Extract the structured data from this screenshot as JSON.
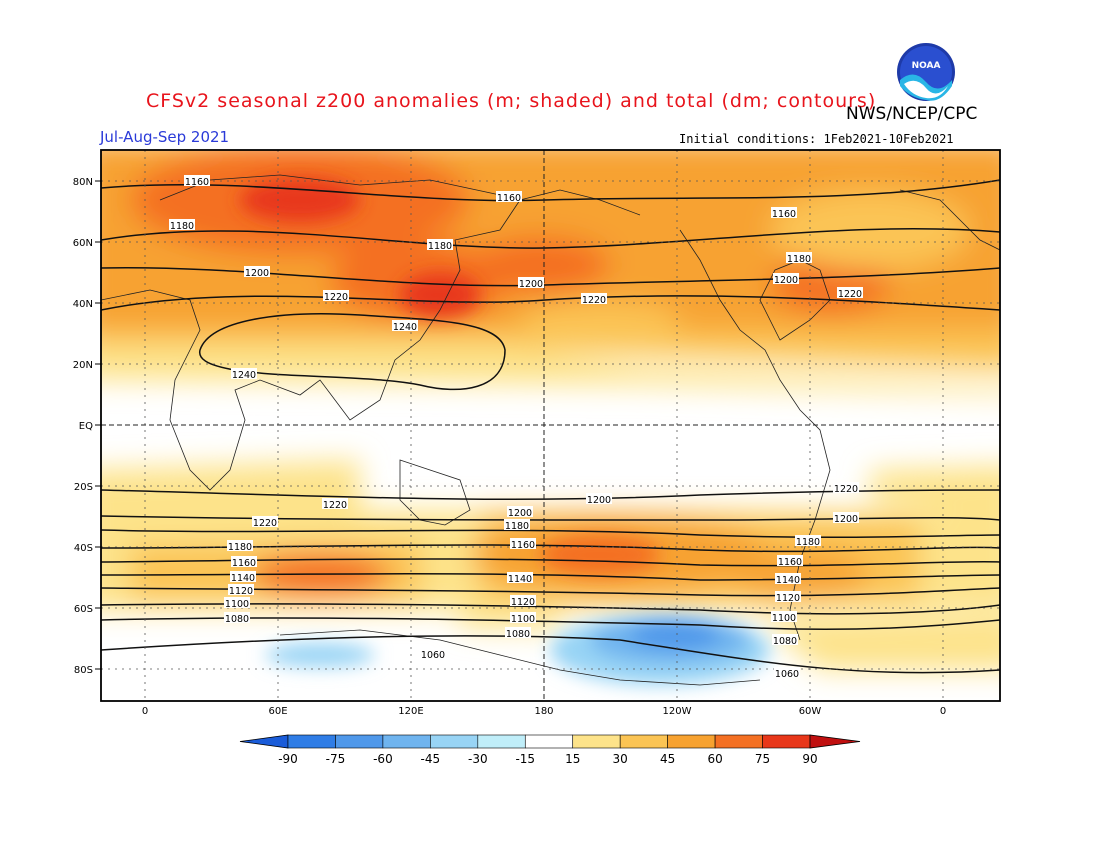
{
  "title": "CFSv2 seasonal z200 anomalies (m; shaded) and total (dm; contours)",
  "agency": "NWS/NCEP/CPC",
  "period": "Jul-Aug-Sep 2021",
  "initial_conditions": "Initial conditions: 1Feb2021-10Feb2021",
  "logo_text": "NOAA",
  "lat_ticks": [
    "80N",
    "60N",
    "40N",
    "20N",
    "EQ",
    "20S",
    "40S",
    "60S",
    "80S"
  ],
  "lon_ticks": [
    "0",
    "60E",
    "120E",
    "180",
    "120W",
    "60W",
    "0"
  ],
  "colorbar": {
    "labels": [
      "-90",
      "-75",
      "-60",
      "-45",
      "-30",
      "-15",
      "15",
      "30",
      "45",
      "60",
      "75",
      "90"
    ],
    "colors": [
      "#1a5cd9",
      "#2f7de6",
      "#4f98ea",
      "#6fb4ef",
      "#98d4f5",
      "#c0eef9",
      "#ffffff",
      "#fde38a",
      "#fbc454",
      "#f7a230",
      "#f47023",
      "#e8371a",
      "#c01010"
    ]
  },
  "contour_labels": [
    "1160",
    "1160",
    "1160",
    "1180",
    "1180",
    "1180",
    "1200",
    "1200",
    "1200",
    "1220",
    "1220",
    "1220",
    "1240",
    "1240",
    "1220",
    "1200",
    "1220",
    "1220",
    "1200",
    "1200",
    "1180",
    "1180",
    "1180",
    "1160",
    "1160",
    "1160",
    "1140",
    "1140",
    "1140",
    "1120",
    "1120",
    "1120",
    "1100",
    "1100",
    "1100",
    "1080",
    "1080",
    "1080",
    "1060",
    "1060"
  ]
}
